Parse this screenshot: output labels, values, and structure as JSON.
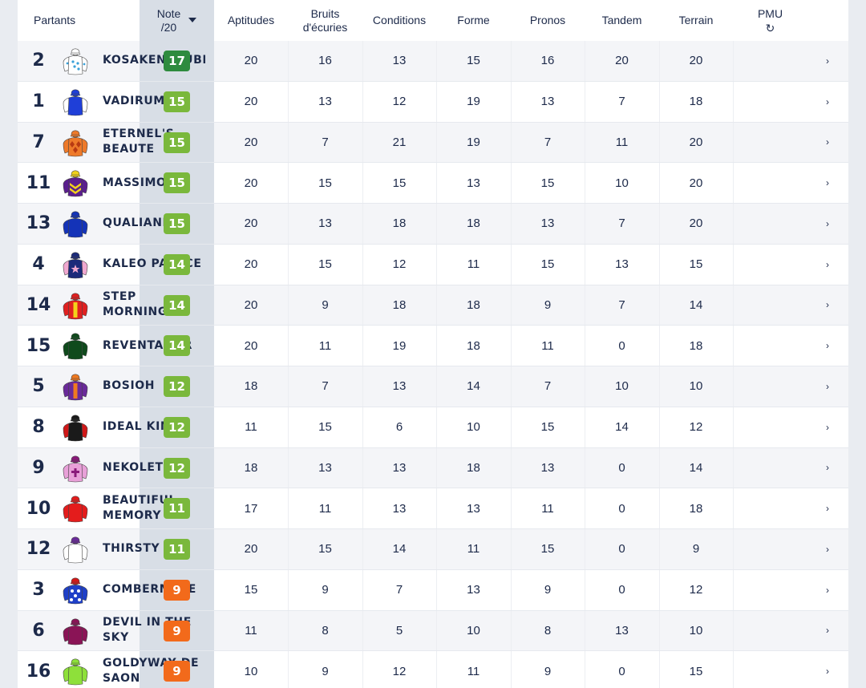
{
  "header": {
    "partants": "Partants",
    "note_line1": "Note",
    "note_line2": "/20",
    "aptitudes": "Aptitudes",
    "bruits_line1": "Bruits",
    "bruits_line2": "d'écuries",
    "conditions": "Conditions",
    "forme": "Forme",
    "pronos": "Pronos",
    "tandem": "Tandem",
    "terrain": "Terrain",
    "pmu": "PMU",
    "refresh_icon": "↻",
    "row_arrow": "›"
  },
  "colors": {
    "badge_dark_green": "#2e8b3e",
    "badge_green": "#7ab83c",
    "badge_orange": "#f26a1b",
    "note_band": "#d8dee6",
    "text": "#1d2a4a"
  },
  "rows": [
    {
      "num": "2",
      "name": "KOSAKENZAUBEL",
      "note": "17",
      "tier": "dark",
      "aptitudes": "20",
      "bruits": "16",
      "conditions": "13",
      "forme": "15",
      "pronos": "16",
      "tandem": "20",
      "terrain": "20",
      "silk": "white-blue-dots"
    },
    {
      "num": "1",
      "name": "VADIRUM",
      "note": "15",
      "tier": "green",
      "aptitudes": "20",
      "bruits": "13",
      "conditions": "12",
      "forme": "19",
      "pronos": "13",
      "tandem": "7",
      "terrain": "18",
      "silk": "blue-white"
    },
    {
      "num": "7",
      "name": "ETERNEL'S BEAUTE",
      "note": "15",
      "tier": "green",
      "aptitudes": "20",
      "bruits": "7",
      "conditions": "21",
      "forme": "19",
      "pronos": "7",
      "tandem": "11",
      "terrain": "20",
      "silk": "orange-diamonds"
    },
    {
      "num": "11",
      "name": "MASSIMO",
      "note": "15",
      "tier": "green",
      "aptitudes": "20",
      "bruits": "15",
      "conditions": "15",
      "forme": "13",
      "pronos": "15",
      "tandem": "10",
      "terrain": "20",
      "silk": "purple-yellow-chevrons"
    },
    {
      "num": "13",
      "name": "QUALIAND",
      "note": "15",
      "tier": "green",
      "aptitudes": "20",
      "bruits": "13",
      "conditions": "18",
      "forme": "18",
      "pronos": "13",
      "tandem": "7",
      "terrain": "20",
      "silk": "blue-dark"
    },
    {
      "num": "4",
      "name": "KALEO PALACE",
      "note": "14",
      "tier": "green",
      "aptitudes": "20",
      "bruits": "15",
      "conditions": "12",
      "forme": "11",
      "pronos": "15",
      "tandem": "13",
      "terrain": "15",
      "silk": "pink-navy-star"
    },
    {
      "num": "14",
      "name": "STEP MORNING",
      "note": "14",
      "tier": "green",
      "aptitudes": "20",
      "bruits": "9",
      "conditions": "18",
      "forme": "18",
      "pronos": "9",
      "tandem": "7",
      "terrain": "14",
      "silk": "red-yellow"
    },
    {
      "num": "15",
      "name": "REVENTADOR",
      "note": "14",
      "tier": "green",
      "aptitudes": "20",
      "bruits": "11",
      "conditions": "19",
      "forme": "18",
      "pronos": "11",
      "tandem": "0",
      "terrain": "18",
      "silk": "dark-green"
    },
    {
      "num": "5",
      "name": "BOSIOH",
      "note": "12",
      "tier": "green",
      "aptitudes": "18",
      "bruits": "7",
      "conditions": "13",
      "forme": "14",
      "pronos": "7",
      "tandem": "10",
      "terrain": "10",
      "silk": "purple-orange"
    },
    {
      "num": "8",
      "name": "IDEAL KING",
      "note": "12",
      "tier": "green",
      "aptitudes": "11",
      "bruits": "15",
      "conditions": "6",
      "forme": "10",
      "pronos": "15",
      "tandem": "14",
      "terrain": "12",
      "silk": "black-red"
    },
    {
      "num": "9",
      "name": "NEKOLETO",
      "note": "12",
      "tier": "green",
      "aptitudes": "18",
      "bruits": "13",
      "conditions": "13",
      "forme": "18",
      "pronos": "13",
      "tandem": "0",
      "terrain": "14",
      "silk": "pink-purple-cross"
    },
    {
      "num": "10",
      "name": "BEAUTIFUL MEMORY",
      "note": "11",
      "tier": "green",
      "aptitudes": "17",
      "bruits": "11",
      "conditions": "13",
      "forme": "13",
      "pronos": "11",
      "tandem": "0",
      "terrain": "18",
      "silk": "red"
    },
    {
      "num": "12",
      "name": "THIRSTY",
      "note": "11",
      "tier": "green",
      "aptitudes": "20",
      "bruits": "15",
      "conditions": "14",
      "forme": "11",
      "pronos": "15",
      "tandem": "0",
      "terrain": "9",
      "silk": "white-purple"
    },
    {
      "num": "3",
      "name": "COMBERMERE",
      "note": "9",
      "tier": "orange",
      "aptitudes": "15",
      "bruits": "9",
      "conditions": "7",
      "forme": "13",
      "pronos": "9",
      "tandem": "0",
      "terrain": "12",
      "silk": "blue-white-stars"
    },
    {
      "num": "6",
      "name": "DEVIL IN THE SKY",
      "note": "9",
      "tier": "orange",
      "aptitudes": "11",
      "bruits": "8",
      "conditions": "5",
      "forme": "10",
      "pronos": "8",
      "tandem": "13",
      "terrain": "10",
      "silk": "maroon"
    },
    {
      "num": "16",
      "name": "GOLDYWAY DE SAON",
      "note": "9",
      "tier": "orange",
      "aptitudes": "10",
      "bruits": "9",
      "conditions": "12",
      "forme": "11",
      "pronos": "9",
      "tandem": "0",
      "terrain": "15",
      "silk": "lime-green"
    }
  ]
}
